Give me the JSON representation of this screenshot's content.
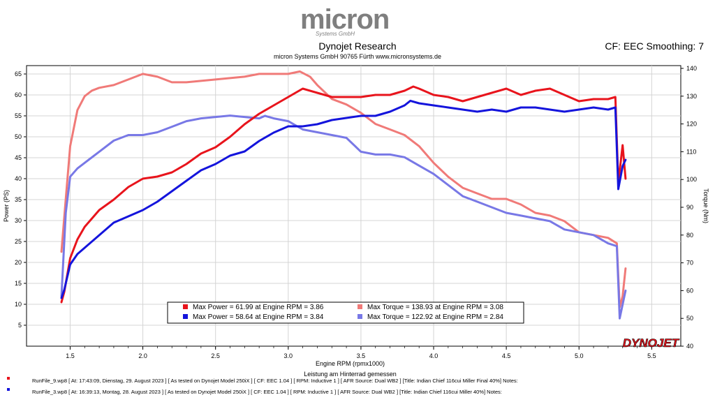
{
  "header": {
    "logo_text": "micron",
    "logo_sub": "Systems GmbH",
    "title": "Dynojet Research",
    "subtitle": "micron Systems GmbH  90765 Fürth www.micronsystems.de",
    "cf": "CF: EEC Smoothing: 7"
  },
  "brand": "DYNOJET",
  "colors": {
    "power1": "#e8141c",
    "power2": "#1414dc",
    "torque1": "#f07a78",
    "torque2": "#7878e6"
  },
  "chart_data": {
    "type": "line",
    "xlabel": "Engine RPM (rpmx1000)",
    "ylabel": "Power (PS)",
    "y2label": "Torque (Nm)",
    "xnote": "Leistung am Hinterrad gemessen",
    "xlim": [
      1.2,
      5.7
    ],
    "ylim": [
      0,
      67
    ],
    "y2lim": [
      40,
      141
    ],
    "xticks": [
      "1.5",
      "2.0",
      "2.5",
      "3.0",
      "3.5",
      "4.0",
      "4.5",
      "5.0",
      "5.5"
    ],
    "yticks": [
      "5",
      "10",
      "15",
      "20",
      "25",
      "30",
      "35",
      "40",
      "45",
      "50",
      "55",
      "60",
      "65"
    ],
    "y2ticks": [
      "40",
      "50",
      "60",
      "70",
      "80",
      "90",
      "100",
      "110",
      "120",
      "130",
      "140"
    ],
    "grid": true,
    "legend_placement": "bottom-center",
    "legend": [
      "Max Power = 61.99 at Engine RPM = 3.86",
      "Max Torque = 138.93 at Engine RPM = 3.08",
      "Max Power = 58.64 at Engine RPM = 3.84",
      "Max Torque = 122.92 at Engine RPM = 2.84"
    ],
    "series": [
      {
        "axis": "right",
        "color": "#f07a78",
        "points": [
          [
            1.44,
            74
          ],
          [
            1.47,
            93
          ],
          [
            1.5,
            112
          ],
          [
            1.55,
            125
          ],
          [
            1.6,
            130
          ],
          [
            1.65,
            132
          ],
          [
            1.7,
            133
          ],
          [
            1.8,
            134
          ],
          [
            1.9,
            136
          ],
          [
            2.0,
            138
          ],
          [
            2.1,
            137
          ],
          [
            2.2,
            135
          ],
          [
            2.3,
            135
          ],
          [
            2.4,
            135.5
          ],
          [
            2.5,
            136
          ],
          [
            2.6,
            136.5
          ],
          [
            2.7,
            137
          ],
          [
            2.8,
            138
          ],
          [
            2.9,
            138
          ],
          [
            3.0,
            138
          ],
          [
            3.08,
            138.9
          ],
          [
            3.15,
            137
          ],
          [
            3.2,
            134
          ],
          [
            3.3,
            129
          ],
          [
            3.4,
            127
          ],
          [
            3.5,
            124
          ],
          [
            3.6,
            120
          ],
          [
            3.7,
            118
          ],
          [
            3.8,
            116
          ],
          [
            3.9,
            112
          ],
          [
            4.0,
            106
          ],
          [
            4.1,
            101
          ],
          [
            4.2,
            97
          ],
          [
            4.3,
            95
          ],
          [
            4.4,
            93
          ],
          [
            4.5,
            93
          ],
          [
            4.6,
            91
          ],
          [
            4.7,
            88
          ],
          [
            4.8,
            87
          ],
          [
            4.9,
            85
          ],
          [
            5.0,
            81
          ],
          [
            5.1,
            80
          ],
          [
            5.2,
            79
          ],
          [
            5.26,
            77
          ],
          [
            5.28,
            54
          ],
          [
            5.3,
            58
          ],
          [
            5.32,
            68
          ]
        ]
      },
      {
        "axis": "right",
        "color": "#7878e6",
        "points": [
          [
            1.44,
            58
          ],
          [
            1.47,
            88
          ],
          [
            1.5,
            101
          ],
          [
            1.55,
            104
          ],
          [
            1.6,
            106
          ],
          [
            1.7,
            110
          ],
          [
            1.8,
            114
          ],
          [
            1.9,
            116
          ],
          [
            2.0,
            116
          ],
          [
            2.1,
            117
          ],
          [
            2.2,
            119
          ],
          [
            2.3,
            121
          ],
          [
            2.4,
            122
          ],
          [
            2.5,
            122.5
          ],
          [
            2.6,
            123
          ],
          [
            2.7,
            122.5
          ],
          [
            2.8,
            122
          ],
          [
            2.84,
            122.9
          ],
          [
            2.9,
            122
          ],
          [
            3.0,
            121
          ],
          [
            3.1,
            118
          ],
          [
            3.2,
            117
          ],
          [
            3.3,
            116
          ],
          [
            3.4,
            115
          ],
          [
            3.5,
            110
          ],
          [
            3.6,
            109
          ],
          [
            3.7,
            109
          ],
          [
            3.8,
            108
          ],
          [
            3.9,
            105
          ],
          [
            4.0,
            102
          ],
          [
            4.1,
            98
          ],
          [
            4.2,
            94
          ],
          [
            4.3,
            92
          ],
          [
            4.4,
            90
          ],
          [
            4.5,
            88
          ],
          [
            4.6,
            87
          ],
          [
            4.7,
            86
          ],
          [
            4.8,
            85
          ],
          [
            4.9,
            82
          ],
          [
            5.0,
            81
          ],
          [
            5.1,
            80
          ],
          [
            5.2,
            77
          ],
          [
            5.26,
            76
          ],
          [
            5.28,
            50
          ],
          [
            5.3,
            55
          ],
          [
            5.32,
            60
          ]
        ]
      },
      {
        "axis": "left",
        "color": "#e8141c",
        "points": [
          [
            1.44,
            10.5
          ],
          [
            1.46,
            13
          ],
          [
            1.5,
            21
          ],
          [
            1.55,
            25.5
          ],
          [
            1.6,
            28.5
          ],
          [
            1.7,
            32.5
          ],
          [
            1.8,
            35
          ],
          [
            1.9,
            38
          ],
          [
            2.0,
            40
          ],
          [
            2.1,
            40.5
          ],
          [
            2.2,
            41.5
          ],
          [
            2.3,
            43.5
          ],
          [
            2.4,
            46
          ],
          [
            2.5,
            47.5
          ],
          [
            2.6,
            50
          ],
          [
            2.7,
            53
          ],
          [
            2.8,
            55.5
          ],
          [
            2.9,
            57.5
          ],
          [
            3.0,
            59.5
          ],
          [
            3.1,
            61.5
          ],
          [
            3.2,
            60.5
          ],
          [
            3.3,
            59.5
          ],
          [
            3.4,
            59.5
          ],
          [
            3.5,
            59.5
          ],
          [
            3.6,
            60
          ],
          [
            3.7,
            60
          ],
          [
            3.8,
            61
          ],
          [
            3.86,
            62
          ],
          [
            3.9,
            61.5
          ],
          [
            4.0,
            60
          ],
          [
            4.1,
            59.5
          ],
          [
            4.2,
            58.5
          ],
          [
            4.3,
            59.5
          ],
          [
            4.4,
            60.5
          ],
          [
            4.5,
            61.5
          ],
          [
            4.6,
            60
          ],
          [
            4.7,
            61
          ],
          [
            4.8,
            61.5
          ],
          [
            4.9,
            60
          ],
          [
            5.0,
            58.5
          ],
          [
            5.1,
            59
          ],
          [
            5.2,
            59
          ],
          [
            5.25,
            59.5
          ],
          [
            5.27,
            39
          ],
          [
            5.3,
            48
          ],
          [
            5.32,
            40
          ]
        ]
      },
      {
        "axis": "left",
        "color": "#1414dc",
        "points": [
          [
            1.44,
            11.5
          ],
          [
            1.46,
            13.5
          ],
          [
            1.5,
            19.5
          ],
          [
            1.55,
            22
          ],
          [
            1.6,
            23.5
          ],
          [
            1.7,
            26.5
          ],
          [
            1.8,
            29.5
          ],
          [
            1.9,
            31
          ],
          [
            2.0,
            32.5
          ],
          [
            2.1,
            34.5
          ],
          [
            2.2,
            37
          ],
          [
            2.3,
            39.5
          ],
          [
            2.4,
            42
          ],
          [
            2.5,
            43.5
          ],
          [
            2.6,
            45.5
          ],
          [
            2.7,
            46.5
          ],
          [
            2.8,
            49
          ],
          [
            2.9,
            51
          ],
          [
            3.0,
            52.5
          ],
          [
            3.1,
            52.5
          ],
          [
            3.2,
            53
          ],
          [
            3.3,
            54
          ],
          [
            3.4,
            54.5
          ],
          [
            3.5,
            55
          ],
          [
            3.6,
            55
          ],
          [
            3.7,
            56
          ],
          [
            3.8,
            57.5
          ],
          [
            3.84,
            58.6
          ],
          [
            3.9,
            58
          ],
          [
            4.0,
            57.5
          ],
          [
            4.1,
            57
          ],
          [
            4.2,
            56.5
          ],
          [
            4.3,
            56
          ],
          [
            4.4,
            56.5
          ],
          [
            4.5,
            56
          ],
          [
            4.6,
            57
          ],
          [
            4.7,
            57
          ],
          [
            4.8,
            56.5
          ],
          [
            4.9,
            56
          ],
          [
            5.0,
            56.5
          ],
          [
            5.1,
            57
          ],
          [
            5.2,
            56.5
          ],
          [
            5.25,
            57
          ],
          [
            5.27,
            37.5
          ],
          [
            5.3,
            43
          ],
          [
            5.32,
            44.5
          ]
        ]
      }
    ]
  },
  "footer": [
    "RunFile_9.wp8  [  At:  17:43:09,  Dienstag,  29.  August  2023  ]  [  As  tested  on  Dynojet  Model  250iX  ]  [  CF:  EEC  1.04  ]  [  RPM:  Inductive  1  ]  [  AFR  Source:  Dual  WB2  ]  [Title:  Indian  Chief  116cui  Miller  Final  40%]  Notes:",
    "RunFile_3.wp8  [  At:  16:39:13,  Montag,  28.  August  2023  ]  [  As  tested  on  Dynojet  Model  250iX  ]  [  CF:  EEC  1.04  ]  [  RPM:  Inductive  1  ]  [  AFR  Source:  Dual  WB2  ]  [Title:  Indian  Chief  116cui  Miller  40%]  Notes:"
  ]
}
